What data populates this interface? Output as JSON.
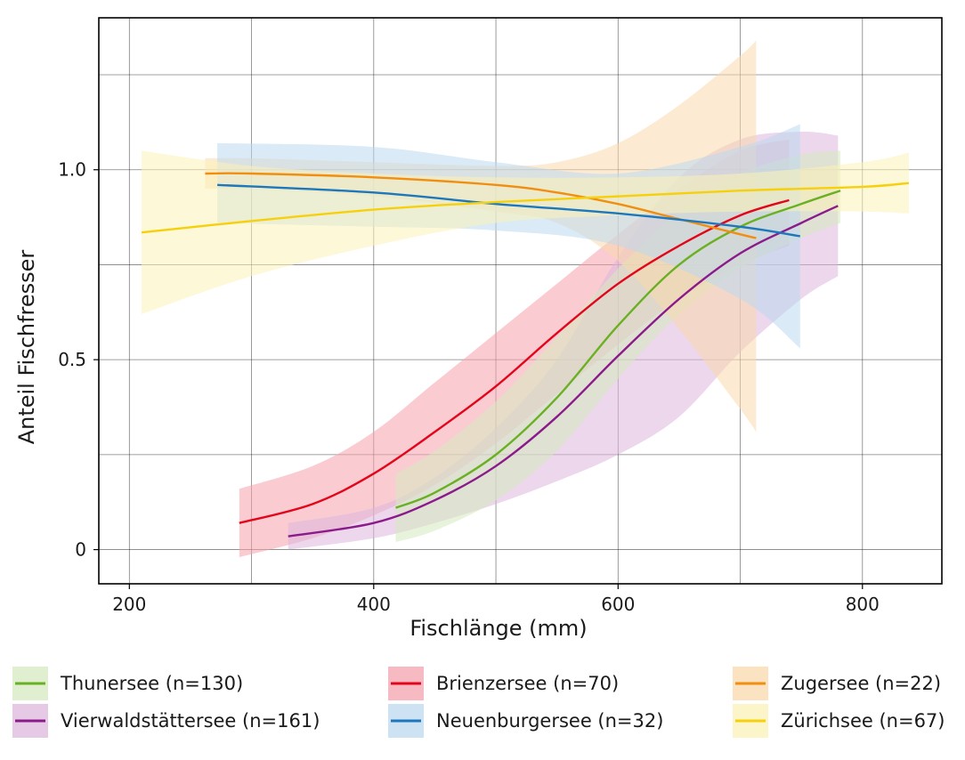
{
  "chart_data": {
    "type": "line",
    "title": "",
    "xlabel": "Fischlänge (mm)",
    "ylabel": "Anteil Fischfresser",
    "xlim": [
      175,
      865
    ],
    "ylim": [
      -0.09,
      1.4
    ],
    "x_ticks": [
      200,
      400,
      600,
      800
    ],
    "x_tick_labels": [
      "200",
      "400",
      "600",
      "800"
    ],
    "y_ticks": [
      0,
      0.5,
      1.0
    ],
    "y_tick_labels": [
      "0",
      "0.5",
      "1.0"
    ],
    "x_minor_grid": [
      300,
      500,
      700
    ],
    "y_minor_grid": [
      0.25,
      0.75,
      1.25
    ],
    "grid": true,
    "legend_position": "bottom",
    "series": [
      {
        "name": "Brienzersee",
        "label": "Brienzersee (n=70)",
        "color": "#e3061b",
        "band_color": "#f5a3ad",
        "x": [
          290,
          350,
          400,
          450,
          500,
          550,
          600,
          650,
          700,
          740
        ],
        "y": [
          0.07,
          0.12,
          0.2,
          0.31,
          0.43,
          0.57,
          0.7,
          0.8,
          0.88,
          0.92
        ],
        "lower": [
          -0.02,
          0.03,
          0.09,
          0.17,
          0.28,
          0.41,
          0.54,
          0.66,
          0.75,
          0.8
        ],
        "upper": [
          0.16,
          0.22,
          0.31,
          0.44,
          0.57,
          0.7,
          0.83,
          0.95,
          1.05,
          1.08
        ]
      },
      {
        "name": "Vierwaldstättersee",
        "label": "Vierwaldstättersee (n=161)",
        "color": "#8b1a8b",
        "band_color": "#dcb7dc",
        "x": [
          330,
          400,
          450,
          500,
          550,
          600,
          650,
          700,
          750,
          780
        ],
        "y": [
          0.035,
          0.07,
          0.13,
          0.22,
          0.35,
          0.51,
          0.66,
          0.78,
          0.86,
          0.905
        ],
        "lower": [
          0.0,
          0.03,
          0.07,
          0.12,
          0.18,
          0.25,
          0.35,
          0.52,
          0.66,
          0.72
        ],
        "upper": [
          0.07,
          0.11,
          0.19,
          0.32,
          0.5,
          0.77,
          0.98,
          1.08,
          1.1,
          1.09
        ]
      },
      {
        "name": "Thunersee",
        "label": "Thunersee (n=130)",
        "color": "#6ab023",
        "band_color": "#d5e9bf",
        "x": [
          418,
          450,
          500,
          550,
          600,
          650,
          700,
          750,
          782
        ],
        "y": [
          0.11,
          0.15,
          0.25,
          0.4,
          0.59,
          0.75,
          0.85,
          0.91,
          0.945
        ],
        "lower": [
          0.02,
          0.05,
          0.13,
          0.26,
          0.45,
          0.62,
          0.74,
          0.82,
          0.86
        ],
        "upper": [
          0.2,
          0.26,
          0.39,
          0.56,
          0.74,
          0.89,
          0.99,
          1.04,
          1.05
        ]
      },
      {
        "name": "Zugersee",
        "label": "Zugersee (n=22)",
        "color": "#f18e0f",
        "band_color": "#fad9ad",
        "x": [
          262,
          300,
          400,
          500,
          550,
          600,
          650,
          700,
          713
        ],
        "y": [
          0.99,
          0.99,
          0.98,
          0.96,
          0.94,
          0.91,
          0.87,
          0.83,
          0.82
        ],
        "lower": [
          0.95,
          0.95,
          0.93,
          0.89,
          0.86,
          0.76,
          0.58,
          0.37,
          0.31
        ],
        "upper": [
          1.03,
          1.03,
          1.02,
          1.01,
          1.02,
          1.07,
          1.17,
          1.3,
          1.34
        ]
      },
      {
        "name": "Neuenburgersee",
        "label": "Neuenburgersee (n=32)",
        "color": "#1c77bb",
        "band_color": "#bcd8ef",
        "x": [
          272,
          400,
          500,
          600,
          700,
          749
        ],
        "y": [
          0.96,
          0.94,
          0.91,
          0.885,
          0.85,
          0.825
        ],
        "lower": [
          0.86,
          0.85,
          0.84,
          0.8,
          0.66,
          0.53
        ],
        "upper": [
          1.07,
          1.06,
          1.02,
          0.99,
          1.06,
          1.12
        ]
      },
      {
        "name": "Zürichsee",
        "label": "Zürichsee (n=67)",
        "color": "#f6d10b",
        "band_color": "#fcf2b8",
        "x": [
          210,
          300,
          400,
          500,
          600,
          700,
          800,
          838
        ],
        "y": [
          0.835,
          0.865,
          0.895,
          0.915,
          0.93,
          0.945,
          0.955,
          0.965
        ],
        "lower": [
          0.62,
          0.72,
          0.8,
          0.86,
          0.88,
          0.89,
          0.89,
          0.885
        ],
        "upper": [
          1.05,
          1.01,
          0.99,
          0.98,
          0.98,
          0.99,
          1.02,
          1.045
        ]
      }
    ]
  },
  "legend": {
    "items": [
      {
        "label": "Thunersee (n=130)",
        "color": "#6ab023",
        "band_color": "#d5e9bf"
      },
      {
        "label": "Brienzersee (n=70)",
        "color": "#e3061b",
        "band_color": "#f5a3ad"
      },
      {
        "label": "Zugersee (n=22)",
        "color": "#f18e0f",
        "band_color": "#fad9ad"
      },
      {
        "label": "Vierwaldstättersee (n=161)",
        "color": "#8b1a8b",
        "band_color": "#dcb7dc"
      },
      {
        "label": "Neuenburgersee (n=32)",
        "color": "#1c77bb",
        "band_color": "#bcd8ef"
      },
      {
        "label": "Zürichsee (n=67)",
        "color": "#f6d10b",
        "band_color": "#fcf2b8"
      }
    ]
  }
}
